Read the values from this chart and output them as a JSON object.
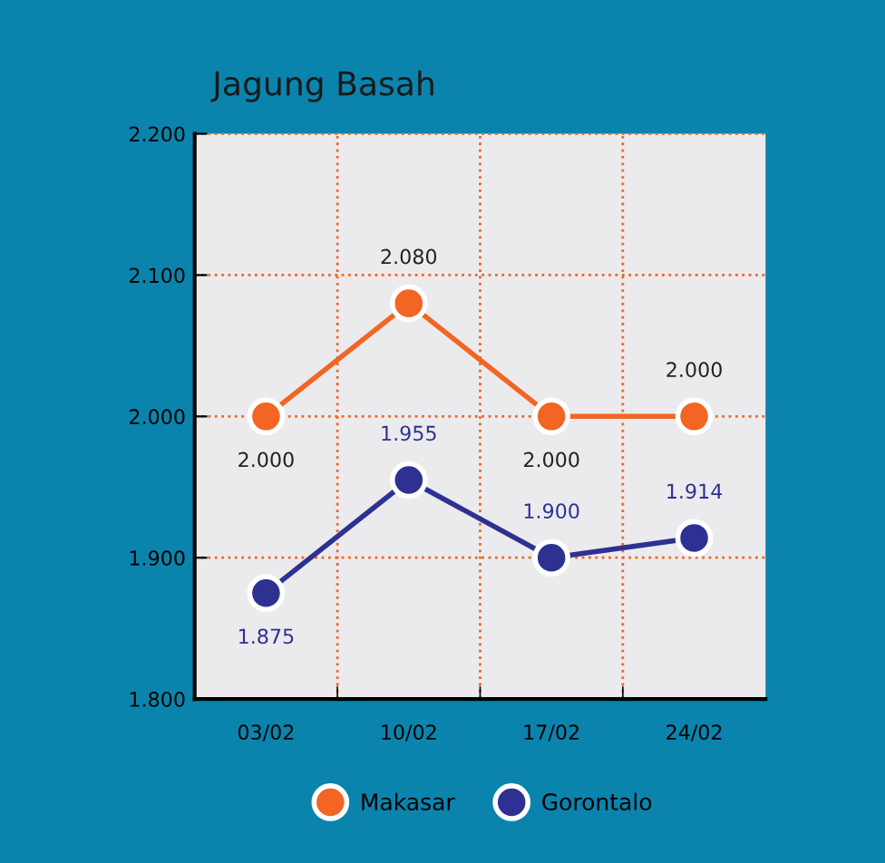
{
  "chart_data": {
    "type": "line",
    "title": "Jagung Basah",
    "categories": [
      "03/02",
      "10/02",
      "17/02",
      "24/02"
    ],
    "series": [
      {
        "name": "Makasar",
        "color": "#f26522",
        "values": [
          2000,
          2080,
          2000,
          2000
        ],
        "value_labels": [
          "2.000",
          "2.080",
          "2.000",
          "2.000"
        ]
      },
      {
        "name": "Gorontalo",
        "color": "#2e3192",
        "values": [
          1875,
          1955,
          1900,
          1914
        ],
        "value_labels": [
          "1.875",
          "1.955",
          "1.900",
          "1.914"
        ]
      }
    ],
    "ylim": [
      1800,
      2200
    ],
    "yticks": [
      {
        "value": 1800,
        "label": "1.800"
      },
      {
        "value": 1900,
        "label": "1.900"
      },
      {
        "value": 2000,
        "label": "2.000"
      },
      {
        "value": 2100,
        "label": "2.100"
      },
      {
        "value": 2200,
        "label": "2.200"
      }
    ],
    "grid": true,
    "legend": "bottom",
    "marker": "circle",
    "line_style": "solid"
  }
}
